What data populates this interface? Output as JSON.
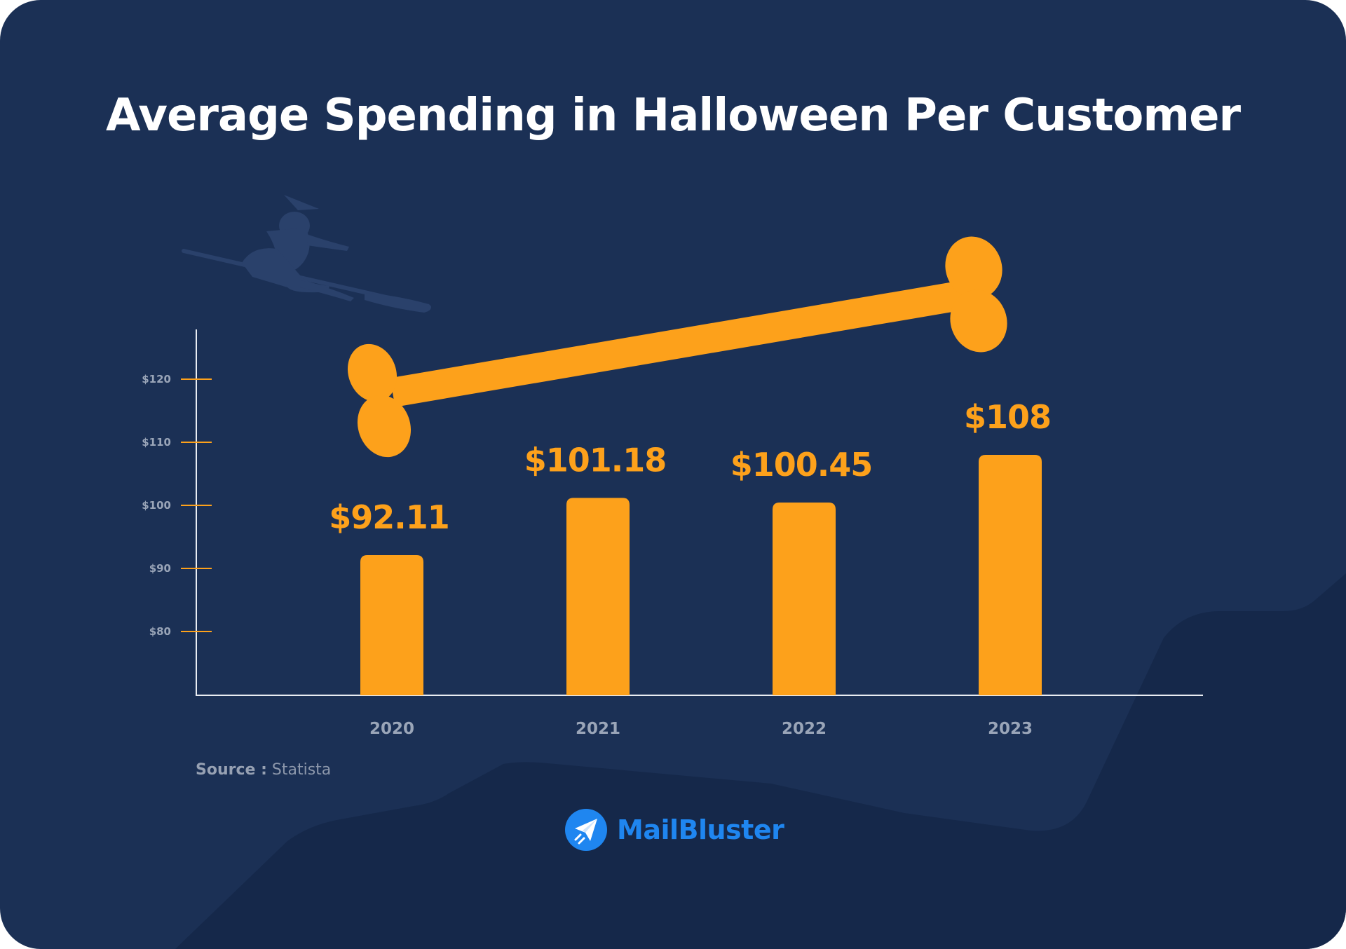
{
  "colors": {
    "background": "#1b3055",
    "hills": "#15284a",
    "accent": "#fda11b",
    "axis": "#e9ecf2",
    "tick_label": "#9aa5b8",
    "brand": "#1f86f0"
  },
  "source": {
    "label": "Source :",
    "value": "Statista"
  },
  "brand": {
    "name": "MailBluster",
    "icon": "paper-plane-icon"
  },
  "decorations": [
    "witch-on-broom-icon",
    "bone-trend-arrow-icon"
  ],
  "chart_data": {
    "type": "bar",
    "title": "Average Spending in Halloween Per Customer",
    "xlabel": "",
    "ylabel": "",
    "categories": [
      "2020",
      "2021",
      "2022",
      "2023"
    ],
    "values": [
      92.11,
      101.18,
      100.45,
      108
    ],
    "data_labels": [
      "$92.11",
      "$101.18",
      "$100.45",
      "$108"
    ],
    "y_ticks": [
      {
        "value": 80,
        "label": "$80"
      },
      {
        "value": 90,
        "label": "$90"
      },
      {
        "value": 100,
        "label": "$100"
      },
      {
        "value": 110,
        "label": "$110"
      },
      {
        "value": 120,
        "label": "$120"
      }
    ],
    "ylim": [
      70,
      128
    ],
    "grid": false,
    "legend": "none",
    "trend": "up"
  }
}
